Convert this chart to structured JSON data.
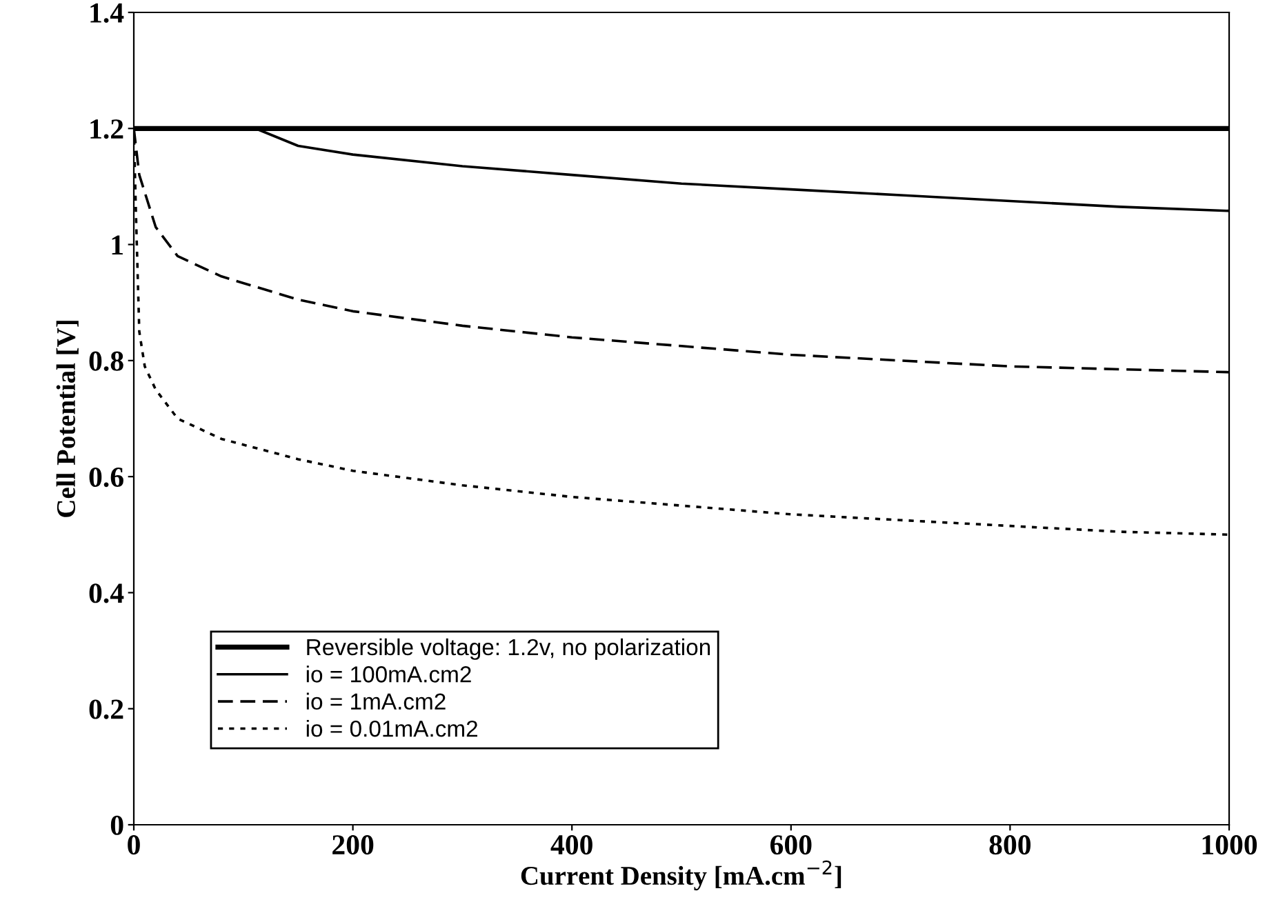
{
  "chart_data": {
    "type": "line",
    "xlabel": "Current Density [mA.cm$^{−2}$]",
    "ylabel": "Cell Potential [V]",
    "xlim": [
      0,
      1000
    ],
    "ylim": [
      0,
      1.4
    ],
    "xticks": [
      0,
      200,
      400,
      600,
      800,
      1000
    ],
    "yticks": [
      0,
      0.2,
      0.4,
      0.6,
      0.8,
      1,
      1.2,
      1.4
    ],
    "grid": false,
    "legend": "bottom left",
    "marker": "none",
    "series": [
      {
        "name": "Reversible voltage: 1.2v, no polarization",
        "color": "#000000",
        "line_style": "solid",
        "x": [
          0,
          1000
        ],
        "values": [
          1.2,
          1.2
        ]
      },
      {
        "name": "io = 100mA.cm2",
        "color": "#000000",
        "line_style": "solid",
        "x": [
          0,
          111,
          150,
          200,
          300,
          400,
          500,
          600,
          700,
          800,
          900,
          1000
        ],
        "values": [
          1.2,
          1.2,
          1.17,
          1.155,
          1.135,
          1.12,
          1.105,
          1.095,
          1.085,
          1.075,
          1.065,
          1.058
        ]
      },
      {
        "name": "io = 1mA.cm2",
        "color": "#000000",
        "line_style": "dashed",
        "x": [
          0,
          5,
          20,
          40,
          80,
          150,
          200,
          300,
          400,
          500,
          600,
          700,
          800,
          900,
          1000
        ],
        "values": [
          1.2,
          1.12,
          1.03,
          0.98,
          0.945,
          0.905,
          0.885,
          0.86,
          0.84,
          0.825,
          0.81,
          0.8,
          0.79,
          0.785,
          0.78
        ]
      },
      {
        "name": "io = 0.01mA.cm2",
        "color": "#000000",
        "line_style": "dotted",
        "x": [
          0,
          2,
          5,
          10,
          20,
          40,
          80,
          150,
          200,
          300,
          400,
          500,
          600,
          700,
          800,
          900,
          1000
        ],
        "values": [
          1.2,
          1.05,
          0.85,
          0.79,
          0.75,
          0.7,
          0.665,
          0.63,
          0.61,
          0.585,
          0.565,
          0.55,
          0.535,
          0.525,
          0.515,
          0.505,
          0.5
        ]
      }
    ]
  }
}
